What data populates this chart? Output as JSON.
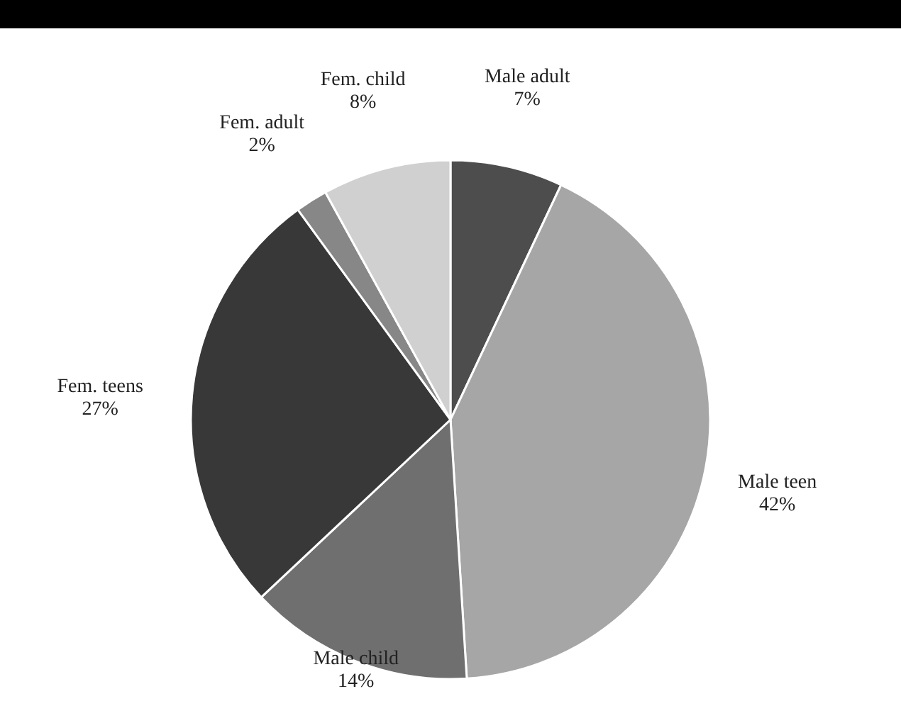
{
  "chart_data": {
    "type": "pie",
    "categories": [
      "Male adult",
      "Male teen",
      "Male child",
      "Fem. teens",
      "Fem. adult",
      "Fem. child"
    ],
    "values": [
      7,
      42,
      14,
      27,
      2,
      8
    ],
    "value_labels": [
      "7%",
      "42%",
      "14%",
      "27%",
      "2%",
      "8%"
    ],
    "colors": [
      "#4d4d4d",
      "#a6a6a6",
      "#6f6f6f",
      "#383838",
      "#878787",
      "#d0d0d0"
    ]
  }
}
